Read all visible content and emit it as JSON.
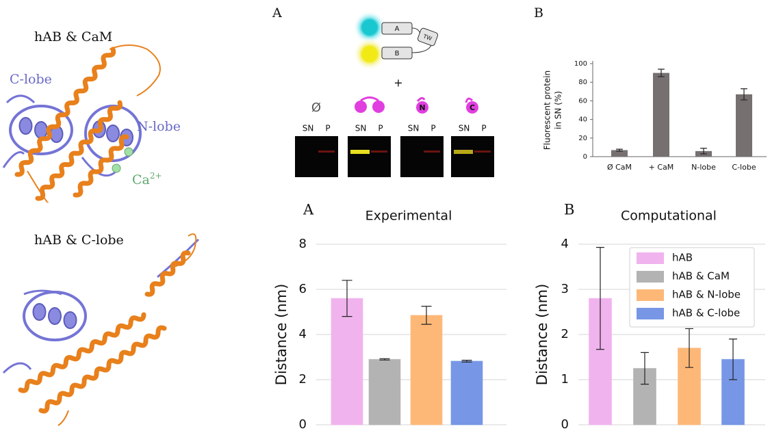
{
  "panels": {
    "top_left": "A",
    "top_right": "B",
    "bottom_left": "A",
    "bottom_right": "B"
  },
  "structures": {
    "complex_1": "hAB & CaM",
    "complex_2": "hAB & C-lobe",
    "c_lobe": "C-lobe",
    "n_lobe": "N-lobe",
    "calcium": "Ca",
    "calcium_charge": "2+"
  },
  "assay": {
    "domain_a": "A",
    "domain_b": "B",
    "linker": "TW",
    "plus": "+",
    "empty_symbol": "Ø",
    "n_icon": "N",
    "c_icon": "C",
    "lanes": [
      "SN",
      "P"
    ]
  },
  "chart_data": [
    {
      "type": "bar",
      "y_label": [
        "Fluorescent protein",
        "in SN (%)"
      ],
      "categories": [
        "Ø CaM",
        "+ CaM",
        "N-lobe",
        "C-lobe"
      ],
      "values": [
        7,
        90,
        6,
        67
      ],
      "errors": [
        1,
        4,
        3,
        6
      ],
      "color": "#767070",
      "ylim": [
        0,
        100
      ],
      "yticks": [
        0,
        20,
        40,
        60,
        80,
        100
      ],
      "grid": false
    },
    {
      "type": "bar",
      "title": "Experimental",
      "y_label": "Distance (nm)",
      "values": [
        5.6,
        2.9,
        4.85,
        2.82
      ],
      "errors": [
        0.8,
        0.03,
        0.4,
        0.04
      ],
      "colors": [
        "#f1b3ee",
        "#b3b3b3",
        "#fdb878",
        "#7797e6"
      ],
      "ylim": [
        0,
        8
      ],
      "yticks": [
        0,
        2,
        4,
        6,
        8
      ],
      "grid": true
    },
    {
      "type": "bar",
      "title": "Computational",
      "y_label": "Distance (nm)",
      "series": [
        {
          "name": "hAB",
          "color": "#f1b3ee",
          "values": [
            2.8
          ],
          "errors": [
            1.13
          ]
        },
        {
          "name": "hAB & CaM",
          "color": "#b3b3b3",
          "values": [
            1.25
          ],
          "errors": [
            0.35
          ]
        },
        {
          "name": "hAB & N-lobe",
          "color": "#fdb878",
          "values": [
            1.7
          ],
          "errors": [
            0.43
          ]
        },
        {
          "name": "hAB & C-lobe",
          "color": "#7797e6",
          "values": [
            1.45
          ],
          "errors": [
            0.45
          ]
        }
      ],
      "ylim": [
        0,
        4
      ],
      "yticks": [
        0,
        1,
        2,
        3,
        4
      ],
      "grid": true,
      "legend": "upper right"
    }
  ]
}
